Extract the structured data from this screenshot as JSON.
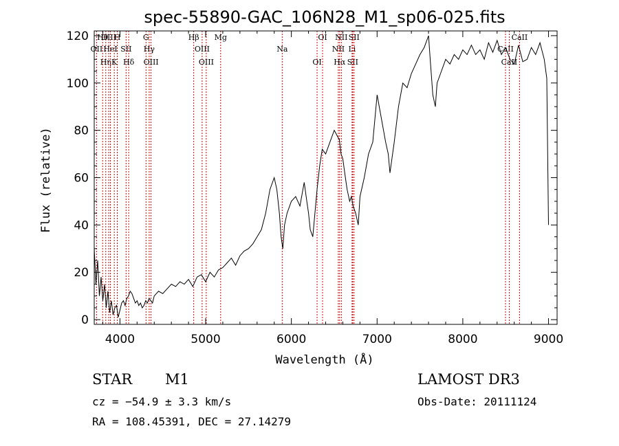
{
  "chart_data": {
    "type": "line",
    "title": "spec-55890-GAC_106N28_M1_sp06-025.fits",
    "xlabel": "Wavelength (Å)",
    "ylabel": "Flux (relative)",
    "xlim": [
      3700,
      9100
    ],
    "ylim": [
      -2,
      122
    ],
    "xticks": [
      4000,
      5000,
      6000,
      7000,
      8000,
      9000
    ],
    "yticks": [
      0,
      20,
      40,
      60,
      80,
      100,
      120
    ],
    "line_color": "#000000",
    "marker_color": "#cc0000",
    "series": [
      {
        "x": [
          3700,
          3720,
          3740,
          3760,
          3780,
          3800,
          3820,
          3840,
          3860,
          3880,
          3900,
          3920,
          3940,
          3960,
          3980,
          4000,
          4020,
          4040,
          4060,
          4080,
          4100,
          4120,
          4140,
          4160,
          4180,
          4200,
          4220,
          4240,
          4260,
          4280,
          4300,
          4320,
          4340,
          4360,
          4380,
          4400,
          4450,
          4500,
          4550,
          4600,
          4650,
          4700,
          4750,
          4800,
          4850,
          4900,
          4950,
          5000,
          5050,
          5100,
          5150,
          5200,
          5250,
          5300,
          5350,
          5400,
          5450,
          5500,
          5550,
          5600,
          5650,
          5700,
          5750,
          5800,
          5830,
          5860,
          5880,
          5900,
          5920,
          5950,
          6000,
          6050,
          6100,
          6150,
          6180,
          6200,
          6220,
          6250,
          6300,
          6330,
          6360,
          6400,
          6450,
          6500,
          6530,
          6560,
          6580,
          6600,
          6630,
          6650,
          6680,
          6700,
          6720,
          6750,
          6780,
          6800,
          6850,
          6900,
          6950,
          7000,
          7050,
          7100,
          7130,
          7150,
          7200,
          7250,
          7300,
          7350,
          7400,
          7450,
          7500,
          7550,
          7580,
          7600,
          7620,
          7650,
          7680,
          7700,
          7750,
          7800,
          7850,
          7900,
          7950,
          8000,
          8050,
          8100,
          8150,
          8200,
          8250,
          8300,
          8350,
          8400,
          8450,
          8500,
          8550,
          8600,
          8650,
          8700,
          8750,
          8800,
          8850,
          8900,
          8950,
          8980,
          9000
        ],
        "y": [
          30,
          15,
          25,
          10,
          18,
          8,
          15,
          5,
          12,
          3,
          8,
          2,
          5,
          6,
          1,
          4,
          7,
          8,
          6,
          9,
          10,
          12,
          11,
          9,
          7,
          8,
          6,
          7,
          5,
          6,
          8,
          7,
          9,
          8,
          7,
          10,
          12,
          11,
          13,
          15,
          14,
          16,
          15,
          17,
          14,
          18,
          19,
          16,
          20,
          18,
          21,
          22,
          24,
          26,
          23,
          27,
          29,
          30,
          32,
          35,
          38,
          45,
          55,
          60,
          55,
          45,
          35,
          30,
          40,
          45,
          50,
          52,
          48,
          58,
          50,
          45,
          38,
          35,
          55,
          65,
          72,
          70,
          75,
          80,
          78,
          76,
          70,
          68,
          60,
          55,
          50,
          52,
          48,
          45,
          40,
          52,
          60,
          70,
          75,
          95,
          85,
          75,
          70,
          62,
          75,
          90,
          100,
          98,
          104,
          108,
          112,
          115,
          118,
          120,
          110,
          95,
          90,
          100,
          105,
          110,
          108,
          112,
          110,
          114,
          112,
          116,
          112,
          114,
          110,
          117,
          113,
          118,
          112,
          115,
          110,
          108,
          116,
          109,
          110,
          115,
          112,
          117,
          110,
          102,
          40
        ]
      }
    ],
    "line_markers": [
      {
        "name": "Hθ",
        "x": 3798
      },
      {
        "name": "OII",
        "x": 3727
      },
      {
        "name": "Hη",
        "x": 3835
      },
      {
        "name": "OIII",
        "x": 3869
      },
      {
        "name": "HeI",
        "x": 3889
      },
      {
        "name": "K",
        "x": 3934
      },
      {
        "name": "H",
        "x": 3969
      },
      {
        "name": "SII",
        "x": 4072
      },
      {
        "name": "Hδ",
        "x": 4102
      },
      {
        "name": "G",
        "x": 4304
      },
      {
        "name": "Hγ",
        "x": 4341
      },
      {
        "name": "OIII",
        "x": 4363
      },
      {
        "name": "Hβ",
        "x": 4861
      },
      {
        "name": "OIII",
        "x": 4959
      },
      {
        "name": "OIII",
        "x": 5007
      },
      {
        "name": "Mg",
        "x": 5175
      },
      {
        "name": "Na",
        "x": 5893
      },
      {
        "name": "OI",
        "x": 6300
      },
      {
        "name": "OI",
        "x": 6364
      },
      {
        "name": "NII",
        "x": 6548
      },
      {
        "name": "Hα",
        "x": 6563
      },
      {
        "name": "NII",
        "x": 6583
      },
      {
        "name": "Li",
        "x": 6708
      },
      {
        "name": "SII",
        "x": 6716
      },
      {
        "name": "SII",
        "x": 6731
      },
      {
        "name": "CaII",
        "x": 8498
      },
      {
        "name": "CaII",
        "x": 8542
      },
      {
        "name": "CaII",
        "x": 8662
      }
    ]
  },
  "info": {
    "object_class": "STAR",
    "subclass": "M1",
    "cz": "cz = −54.9 ± 3.3 km/s",
    "radec": "RA = 108.45391, DEC =  27.14279",
    "survey": "LAMOST DR3",
    "obs_date": "Obs-Date: 20111124"
  }
}
